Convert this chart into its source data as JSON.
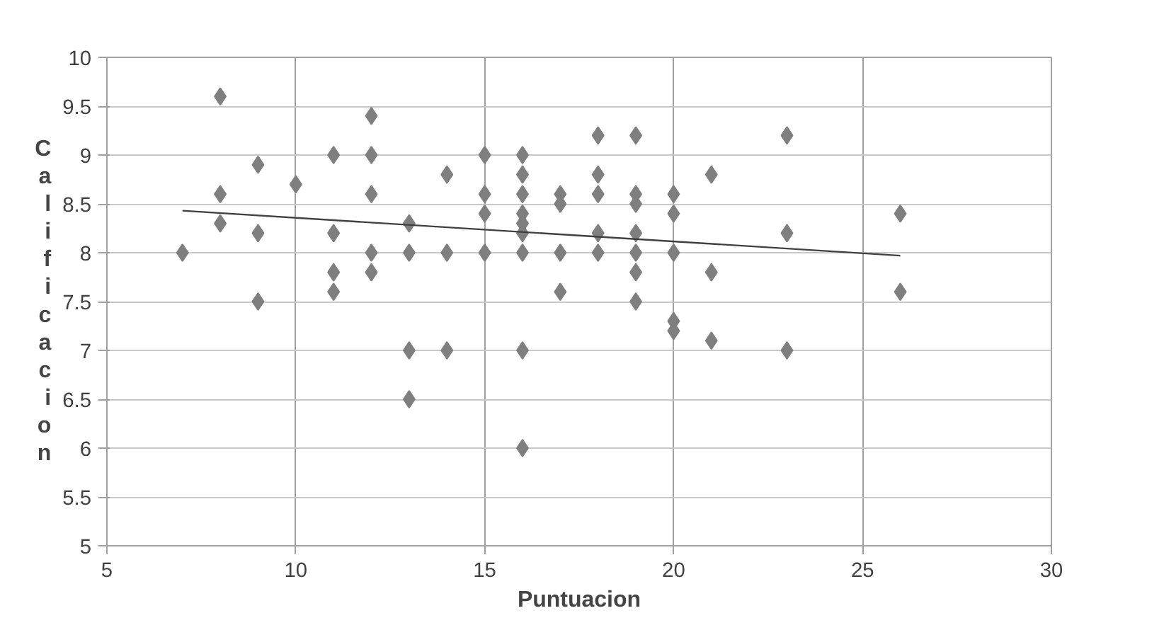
{
  "chart_data": {
    "type": "scatter",
    "xlabel": "Puntuacion",
    "ylabel": "Calificacion",
    "xlim": [
      5,
      30
    ],
    "xticks": [
      5,
      10,
      15,
      20,
      25,
      30
    ],
    "ylim": [
      5,
      10
    ],
    "yticks": [
      5,
      5.5,
      6,
      6.5,
      7,
      7.5,
      8,
      8.5,
      9,
      9.5,
      10
    ],
    "grid": true,
    "marker": "diamond",
    "series": [
      {
        "color": "#7f7f7f",
        "x": [
          7,
          8,
          8,
          8,
          9,
          9,
          9,
          10,
          11,
          11,
          11,
          11,
          12,
          12,
          12,
          12,
          12,
          13,
          13,
          13,
          13,
          14,
          14,
          14,
          15,
          15,
          15,
          15,
          16,
          16,
          16,
          16,
          16,
          16,
          16,
          16,
          16,
          17,
          17,
          17,
          17,
          18,
          18,
          18,
          18,
          18,
          19,
          19,
          19,
          19,
          19,
          19,
          19,
          20,
          20,
          20,
          20,
          20,
          21,
          21,
          21,
          23,
          23,
          23,
          26,
          26
        ],
        "values": [
          8,
          9.6,
          8.6,
          8.3,
          8.9,
          8.2,
          7.5,
          8.7,
          9,
          8.2,
          7.8,
          7.6,
          9.4,
          9,
          8.6,
          8,
          7.8,
          8.3,
          8,
          7,
          6.5,
          8.8,
          8,
          7,
          9,
          8.6,
          8.4,
          8,
          9,
          8.8,
          8.6,
          8.4,
          8.3,
          8.2,
          8,
          7,
          6,
          8.6,
          8.5,
          8,
          7.6,
          9.2,
          8.8,
          8.6,
          8.2,
          8,
          9.2,
          8.6,
          8.5,
          8.2,
          8,
          7.8,
          7.5,
          8.6,
          8.4,
          8,
          7.3,
          7.2,
          8.8,
          7.8,
          7.1,
          9.2,
          8.2,
          7,
          8.4,
          7.6
        ]
      },
      {
        "type": "line",
        "color": "#404040",
        "marker": "none",
        "x": [
          7,
          26
        ],
        "values": [
          8.43,
          7.97
        ]
      }
    ]
  }
}
